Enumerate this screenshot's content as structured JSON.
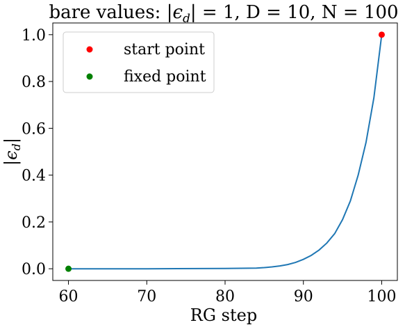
{
  "chart_data": {
    "type": "line",
    "title_math": "bare values: |εd| = 1, D = 10, N = 100",
    "title_parts": {
      "prefix": "bare values: ",
      "abs_open": "|",
      "epsilon": "ϵ",
      "subscript": "d",
      "abs_close": "|",
      "rest": " = 1, D = 10, N = 100"
    },
    "xlabel": "RG step",
    "ylabel": "|ϵd|",
    "ylabel_parts": {
      "abs_open": "|",
      "epsilon": "ϵ",
      "subscript": "d",
      "abs_close": "|"
    },
    "xlim": [
      58,
      102
    ],
    "ylim": [
      -0.05,
      1.05
    ],
    "xticks": [
      60,
      70,
      80,
      90,
      100
    ],
    "xtick_labels": [
      "60",
      "70",
      "80",
      "90",
      "100"
    ],
    "yticks": [
      0.0,
      0.2,
      0.4,
      0.6,
      0.8,
      1.0
    ],
    "ytick_labels": [
      "0.0",
      "0.2",
      "0.4",
      "0.6",
      "0.8",
      "1.0"
    ],
    "grid": false,
    "legend_position": "top-left",
    "series": [
      {
        "kind": "line",
        "color": "#1f77b4",
        "x": [
          60,
          70,
          80,
          84,
          85,
          86,
          87,
          88,
          89,
          90,
          91,
          92,
          93,
          94,
          95,
          96,
          97,
          98,
          99,
          100
        ],
        "y": [
          0.0,
          0.0,
          0.001,
          0.003,
          0.005,
          0.008,
          0.012,
          0.018,
          0.027,
          0.04,
          0.057,
          0.08,
          0.11,
          0.15,
          0.21,
          0.29,
          0.4,
          0.54,
          0.73,
          1.0
        ]
      },
      {
        "kind": "point",
        "name": "start point",
        "color": "#ff0000",
        "x": [
          100
        ],
        "y": [
          1.0
        ]
      },
      {
        "kind": "point",
        "name": "fixed point",
        "color": "#008000",
        "x": [
          60
        ],
        "y": [
          0.0
        ]
      }
    ]
  }
}
